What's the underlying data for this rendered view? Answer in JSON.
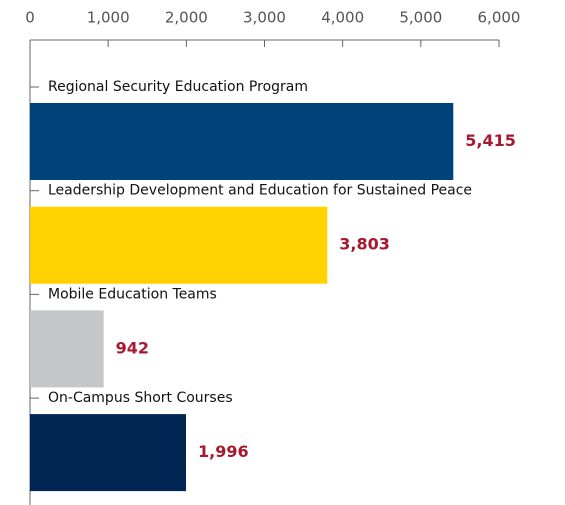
{
  "chart_data": {
    "type": "bar",
    "orientation": "horizontal",
    "categories": [
      "Regional Security Education Program",
      "Leadership Development and Education for Sustained Peace",
      "Mobile Education Teams",
      "On-Campus Short Courses"
    ],
    "values": [
      5415,
      3803,
      942,
      1996
    ],
    "value_labels": [
      "5,415",
      "3,803",
      "942",
      "1,996"
    ],
    "colors": [
      "#00427a",
      "#ffd200",
      "#c4c6c8",
      "#002654"
    ],
    "xlim": [
      0,
      6000
    ],
    "xticks": [
      0,
      {
        "value": 1000,
        "label": "1,000"
      },
      {
        "value": 2000,
        "label": "2,000"
      },
      {
        "value": 3000,
        "label": "3,000"
      },
      {
        "value": 4000,
        "label": "4,000"
      },
      {
        "value": 5000,
        "label": "5,000"
      },
      {
        "value": 6000,
        "label": "6,000"
      }
    ],
    "grid": false
  }
}
